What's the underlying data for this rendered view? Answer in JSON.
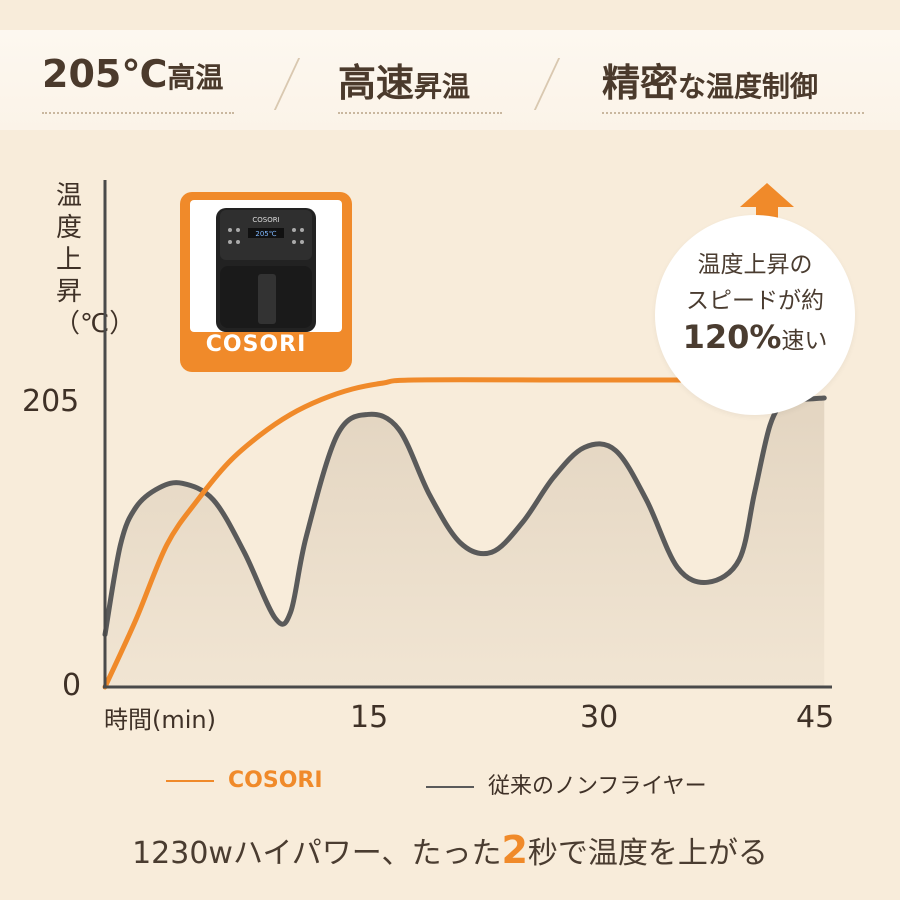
{
  "features": [
    {
      "big": "205℃",
      "small": "高温"
    },
    {
      "big": "高速",
      "small": "昇温"
    },
    {
      "big": "精密",
      "small": "な温度制御"
    }
  ],
  "chart_data": {
    "type": "line",
    "ylabel": "温度上昇（℃）",
    "xlabel": "時間(min)",
    "y_ticks": [
      "205",
      "0"
    ],
    "x_ticks": [
      "15",
      "30",
      "45"
    ],
    "xlim": [
      0,
      47
    ],
    "ylim": [
      0,
      205
    ],
    "series": [
      {
        "name": "COSORI",
        "color": "#f08a2a",
        "points": [
          [
            0,
            0
          ],
          [
            2,
            45
          ],
          [
            4,
            95
          ],
          [
            6,
            125
          ],
          [
            8,
            150
          ],
          [
            10,
            168
          ],
          [
            12,
            182
          ],
          [
            14,
            192
          ],
          [
            16,
            199
          ],
          [
            18,
            203
          ],
          [
            20,
            205
          ],
          [
            30,
            205
          ],
          [
            38,
            205
          ]
        ]
      },
      {
        "name": "従来のノンフライヤー",
        "color": "#5a5a5a",
        "points": [
          [
            0,
            35
          ],
          [
            1,
            95
          ],
          [
            2,
            120
          ],
          [
            3.5,
            133
          ],
          [
            5,
            136
          ],
          [
            7,
            125
          ],
          [
            9,
            90
          ],
          [
            11,
            46
          ],
          [
            12,
            50
          ],
          [
            13,
            100
          ],
          [
            15,
            168
          ],
          [
            17,
            182
          ],
          [
            19,
            172
          ],
          [
            21,
            128
          ],
          [
            23,
            96
          ],
          [
            25,
            90
          ],
          [
            27,
            110
          ],
          [
            29,
            140
          ],
          [
            31,
            160
          ],
          [
            33,
            158
          ],
          [
            35,
            125
          ],
          [
            37,
            80
          ],
          [
            39,
            70
          ],
          [
            41,
            85
          ],
          [
            42,
            130
          ],
          [
            43,
            175
          ],
          [
            44,
            192
          ],
          [
            45,
            192
          ],
          [
            46.5,
            193
          ]
        ]
      }
    ]
  },
  "badge": {
    "label": "COSORI",
    "device_display": "205℃"
  },
  "bubble": {
    "line1": "温度上昇の",
    "line2": "スピードが約",
    "pct": "120%",
    "suffix": "速い"
  },
  "legend": [
    {
      "label": "COSORI",
      "color": "#f08a2a"
    },
    {
      "label": "従来のノンフライヤー",
      "color": "#5a5a5a"
    }
  ],
  "footer": {
    "pre": "1230wハイパワー、たった",
    "em": "2",
    "post": "秒で温度を上がる"
  }
}
